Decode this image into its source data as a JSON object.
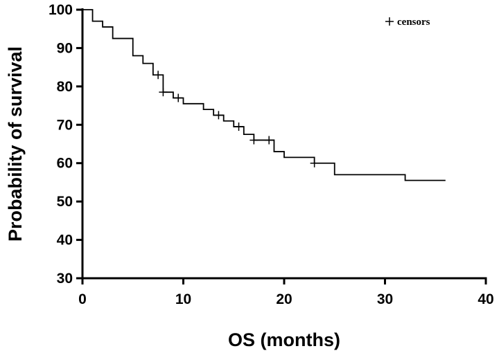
{
  "chart_data": {
    "type": "line",
    "subtype": "kaplan-meier step survival curve",
    "xlabel": "OS (months)",
    "ylabel": "Probability of survival",
    "xlim": [
      0,
      40
    ],
    "ylim": [
      30,
      100
    ],
    "x_ticks": [
      0,
      10,
      20,
      30,
      40
    ],
    "y_ticks": [
      30,
      40,
      50,
      60,
      70,
      80,
      90,
      100
    ],
    "grid": false,
    "legend": {
      "placement": "top-right",
      "entries": [
        {
          "marker": "+",
          "label": "censors"
        }
      ]
    },
    "series": [
      {
        "steps": [
          {
            "x": 0,
            "y": 100
          },
          {
            "x": 1,
            "y": 97
          },
          {
            "x": 2,
            "y": 95.5
          },
          {
            "x": 3,
            "y": 92.5
          },
          {
            "x": 5,
            "y": 88
          },
          {
            "x": 6,
            "y": 86
          },
          {
            "x": 7,
            "y": 83
          },
          {
            "x": 8,
            "y": 78.5
          },
          {
            "x": 9,
            "y": 77
          },
          {
            "x": 10,
            "y": 75.5
          },
          {
            "x": 12,
            "y": 74
          },
          {
            "x": 13,
            "y": 72.5
          },
          {
            "x": 14,
            "y": 71
          },
          {
            "x": 15,
            "y": 69.5
          },
          {
            "x": 16,
            "y": 67.5
          },
          {
            "x": 17,
            "y": 66
          },
          {
            "x": 19,
            "y": 63
          },
          {
            "x": 20,
            "y": 61.5
          },
          {
            "x": 23,
            "y": 60
          },
          {
            "x": 25,
            "y": 57
          },
          {
            "x": 32,
            "y": 55.5
          }
        ],
        "end_x": 36,
        "censors": [
          {
            "x": 7.5,
            "y": 83
          },
          {
            "x": 8,
            "y": 78.5
          },
          {
            "x": 9.5,
            "y": 77
          },
          {
            "x": 13.5,
            "y": 72.5
          },
          {
            "x": 15.5,
            "y": 69.5
          },
          {
            "x": 17,
            "y": 66
          },
          {
            "x": 18.5,
            "y": 66
          },
          {
            "x": 23,
            "y": 60
          }
        ]
      }
    ]
  }
}
